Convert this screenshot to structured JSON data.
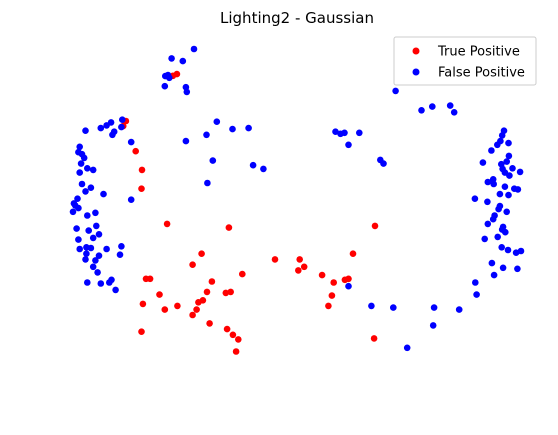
{
  "chart_data": {
    "type": "scatter",
    "title": "Lighting2 - Gaussian",
    "xlabel": "",
    "ylabel": "",
    "axes_visible": false,
    "grid": false,
    "xlim": [
      0,
      100
    ],
    "ylim": [
      0,
      100
    ],
    "legend_position": "top-right",
    "colors": {
      "true_positive": "#ff0000",
      "false_positive": "#0000ff"
    },
    "series": [
      {
        "name": "True Positive",
        "color": "#ff0000",
        "points": [
          [
            23.2,
            92.5
          ],
          [
            22.3,
            92.0
          ],
          [
            11.8,
            78.5
          ],
          [
            11.2,
            77.0
          ],
          [
            14.0,
            69.5
          ],
          [
            15.4,
            63.9
          ],
          [
            15.3,
            58.3
          ],
          [
            21.0,
            47.8
          ],
          [
            34.8,
            46.7
          ],
          [
            67.4,
            47.2
          ],
          [
            45.1,
            37.2
          ],
          [
            28.7,
            38.9
          ],
          [
            26.7,
            35.6
          ],
          [
            50.3,
            33.9
          ],
          [
            17.2,
            31.4
          ],
          [
            16.3,
            31.4
          ],
          [
            31.0,
            30.6
          ],
          [
            29.9,
            27.5
          ],
          [
            29.0,
            25.0
          ],
          [
            28.0,
            24.4
          ],
          [
            19.3,
            26.7
          ],
          [
            15.6,
            23.9
          ],
          [
            23.3,
            23.3
          ],
          [
            27.6,
            22.2
          ],
          [
            26.7,
            20.6
          ],
          [
            35.2,
            27.5
          ],
          [
            34.1,
            27.2
          ],
          [
            37.8,
            32.8
          ],
          [
            50.6,
            37.2
          ],
          [
            51.6,
            35.0
          ],
          [
            62.5,
            38.9
          ],
          [
            55.6,
            32.5
          ],
          [
            58.2,
            30.3
          ],
          [
            57.8,
            26.4
          ],
          [
            60.7,
            31.1
          ],
          [
            61.5,
            31.4
          ],
          [
            57.0,
            23.3
          ],
          [
            20.5,
            22.2
          ],
          [
            30.5,
            18.1
          ],
          [
            34.4,
            16.4
          ],
          [
            35.7,
            14.7
          ],
          [
            36.9,
            13.3
          ],
          [
            15.3,
            15.6
          ],
          [
            36.4,
            9.7
          ],
          [
            67.2,
            13.6
          ]
        ]
      },
      {
        "name": "False Positive",
        "color": "#0000ff",
        "points": [
          [
            27.0,
            100.0
          ],
          [
            22.0,
            97.2
          ],
          [
            24.5,
            96.4
          ],
          [
            20.6,
            91.9
          ],
          [
            25.2,
            88.6
          ],
          [
            21.5,
            91.4
          ],
          [
            25.4,
            87.2
          ],
          [
            21.2,
            92.2
          ],
          [
            11.0,
            78.9
          ],
          [
            8.5,
            78.1
          ],
          [
            7.5,
            77.2
          ],
          [
            10.8,
            76.7
          ],
          [
            6.2,
            76.4
          ],
          [
            9.2,
            75.3
          ],
          [
            8.8,
            74.4
          ],
          [
            2.8,
            75.6
          ],
          [
            20.5,
            88.9
          ],
          [
            13.0,
            72.2
          ],
          [
            1.5,
            70.8
          ],
          [
            1.2,
            69.2
          ],
          [
            2.0,
            68.6
          ],
          [
            2.5,
            67.5
          ],
          [
            1.8,
            65.8
          ],
          [
            3.2,
            64.4
          ],
          [
            1.5,
            63.1
          ],
          [
            4.5,
            63.9
          ],
          [
            2.0,
            59.7
          ],
          [
            4.0,
            58.6
          ],
          [
            2.8,
            57.5
          ],
          [
            6.8,
            56.7
          ],
          [
            1.0,
            55.3
          ],
          [
            0.2,
            53.9
          ],
          [
            0.5,
            53.3
          ],
          [
            1.2,
            52.5
          ],
          [
            0.0,
            51.4
          ],
          [
            3.2,
            50.3
          ],
          [
            5.0,
            51.1
          ],
          [
            5.2,
            47.2
          ],
          [
            0.8,
            46.4
          ],
          [
            3.5,
            45.8
          ],
          [
            4.5,
            43.6
          ],
          [
            5.8,
            44.7
          ],
          [
            1.2,
            43.1
          ],
          [
            3.0,
            40.8
          ],
          [
            1.5,
            40.3
          ],
          [
            4.0,
            40.6
          ],
          [
            7.5,
            40.3
          ],
          [
            3.0,
            38.9
          ],
          [
            5.8,
            38.3
          ],
          [
            5.0,
            36.9
          ],
          [
            2.8,
            37.2
          ],
          [
            4.5,
            35.0
          ],
          [
            5.5,
            33.3
          ],
          [
            8.6,
            31.1
          ],
          [
            3.2,
            30.3
          ],
          [
            6.2,
            30.0
          ],
          [
            8.1,
            30.3
          ],
          [
            9.5,
            28.1
          ],
          [
            13.0,
            55.0
          ],
          [
            10.8,
            41.1
          ],
          [
            10.5,
            38.6
          ],
          [
            25.2,
            72.5
          ],
          [
            29.8,
            74.4
          ],
          [
            32.1,
            78.3
          ],
          [
            35.6,
            76.1
          ],
          [
            31.2,
            66.7
          ],
          [
            39.2,
            76.4
          ],
          [
            30.0,
            60.0
          ],
          [
            40.2,
            65.3
          ],
          [
            42.5,
            64.2
          ],
          [
            59.7,
            74.7
          ],
          [
            58.6,
            75.3
          ],
          [
            60.6,
            75.0
          ],
          [
            63.9,
            75.0
          ],
          [
            68.6,
            66.9
          ],
          [
            61.5,
            71.4
          ],
          [
            69.3,
            65.8
          ],
          [
            72.0,
            87.5
          ],
          [
            77.8,
            81.7
          ],
          [
            80.2,
            82.8
          ],
          [
            84.2,
            83.1
          ],
          [
            85.1,
            81.1
          ],
          [
            96.2,
            75.6
          ],
          [
            95.8,
            74.2
          ],
          [
            95.4,
            72.5
          ],
          [
            97.2,
            71.9
          ],
          [
            94.7,
            71.4
          ],
          [
            93.4,
            69.7
          ],
          [
            97.3,
            68.1
          ],
          [
            96.8,
            66.4
          ],
          [
            91.5,
            66.1
          ],
          [
            95.6,
            65.6
          ],
          [
            95.9,
            64.2
          ],
          [
            99.8,
            63.3
          ],
          [
            98.1,
            64.4
          ],
          [
            96.4,
            63.1
          ],
          [
            97.4,
            62.2
          ],
          [
            92.6,
            60.3
          ],
          [
            93.8,
            61.1
          ],
          [
            93.9,
            59.7
          ],
          [
            96.4,
            58.9
          ],
          [
            98.5,
            58.3
          ],
          [
            99.3,
            58.1
          ],
          [
            95.3,
            56.7
          ],
          [
            97.2,
            56.4
          ],
          [
            92.5,
            54.4
          ],
          [
            89.7,
            55.3
          ],
          [
            95.3,
            53.1
          ],
          [
            95.0,
            52.2
          ],
          [
            96.8,
            51.4
          ],
          [
            94.1,
            50.3
          ],
          [
            93.8,
            49.2
          ],
          [
            92.6,
            47.8
          ],
          [
            96.0,
            46.9
          ],
          [
            95.8,
            46.1
          ],
          [
            96.5,
            45.3
          ],
          [
            94.8,
            43.9
          ],
          [
            91.9,
            43.3
          ],
          [
            95.7,
            40.8
          ],
          [
            97.1,
            40.0
          ],
          [
            98.9,
            39.2
          ],
          [
            100.0,
            39.7
          ],
          [
            93.5,
            36.1
          ],
          [
            96.0,
            34.7
          ],
          [
            99.2,
            34.4
          ],
          [
            94.0,
            32.5
          ],
          [
            89.8,
            30.3
          ],
          [
            90.1,
            26.7
          ],
          [
            86.2,
            22.2
          ],
          [
            80.6,
            22.8
          ],
          [
            80.4,
            17.5
          ],
          [
            61.5,
            29.2
          ],
          [
            71.5,
            22.8
          ],
          [
            74.6,
            10.8
          ],
          [
            66.6,
            23.3
          ]
        ]
      }
    ]
  }
}
